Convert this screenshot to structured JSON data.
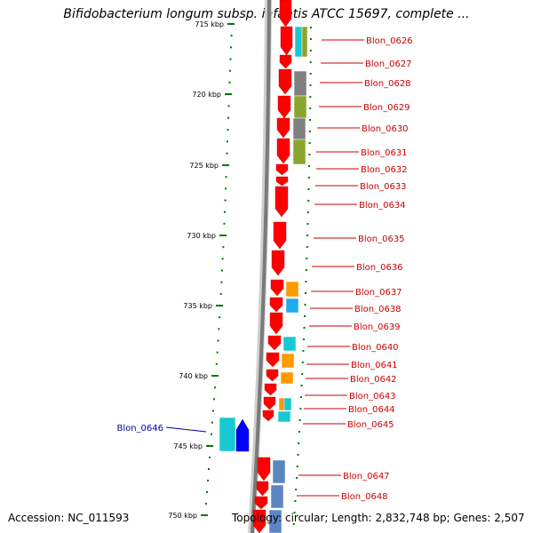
{
  "header": {
    "title": "Bifidobacterium longum subsp. infantis ATCC 15697, complete ..."
  },
  "footer": {
    "accession": "Accession: NC_011593",
    "topology": "Topology: circular; Length: 2,832,748 bp; Genes: 2,507"
  },
  "colors": {
    "forward_gene": "#ff0000",
    "reverse_gene": "#0000ff",
    "label_red": "#cc0000",
    "label_blue": "#0000aa",
    "scale_green": "#007700",
    "cog_cyan": "#19c8d2",
    "cog_orange": "#ff9900",
    "cog_gray": "#808080",
    "cog_olive": "#8aa52d",
    "cog_steel": "#5b86c2",
    "cog_blue": "#1faaee"
  },
  "scale": {
    "unit": "kbp",
    "ticks": [
      "715 kbp",
      "720 kbp",
      "725 kbp",
      "730 kbp",
      "735 kbp",
      "740 kbp",
      "745 kbp",
      "750 kbp"
    ]
  },
  "genes": [
    {
      "label": "Blon_0626",
      "strand": "forward"
    },
    {
      "label": "Blon_0627",
      "strand": "forward"
    },
    {
      "label": "Blon_0628",
      "strand": "forward"
    },
    {
      "label": "Blon_0629",
      "strand": "forward"
    },
    {
      "label": "Blon_0630",
      "strand": "forward"
    },
    {
      "label": "Blon_0631",
      "strand": "forward"
    },
    {
      "label": "Blon_0632",
      "strand": "forward"
    },
    {
      "label": "Blon_0633",
      "strand": "forward"
    },
    {
      "label": "Blon_0634",
      "strand": "forward"
    },
    {
      "label": "Blon_0635",
      "strand": "forward"
    },
    {
      "label": "Blon_0636",
      "strand": "forward"
    },
    {
      "label": "Blon_0637",
      "strand": "forward"
    },
    {
      "label": "Blon_0638",
      "strand": "forward"
    },
    {
      "label": "Blon_0639",
      "strand": "forward"
    },
    {
      "label": "Blon_0640",
      "strand": "forward"
    },
    {
      "label": "Blon_0641",
      "strand": "forward"
    },
    {
      "label": "Blon_0642",
      "strand": "forward"
    },
    {
      "label": "Blon_0643",
      "strand": "forward"
    },
    {
      "label": "Blon_0644",
      "strand": "forward"
    },
    {
      "label": "Blon_0645",
      "strand": "forward"
    },
    {
      "label": "Blon_0646",
      "strand": "reverse"
    },
    {
      "label": "Blon_0647",
      "strand": "forward"
    },
    {
      "label": "Blon_0648",
      "strand": "forward"
    }
  ]
}
